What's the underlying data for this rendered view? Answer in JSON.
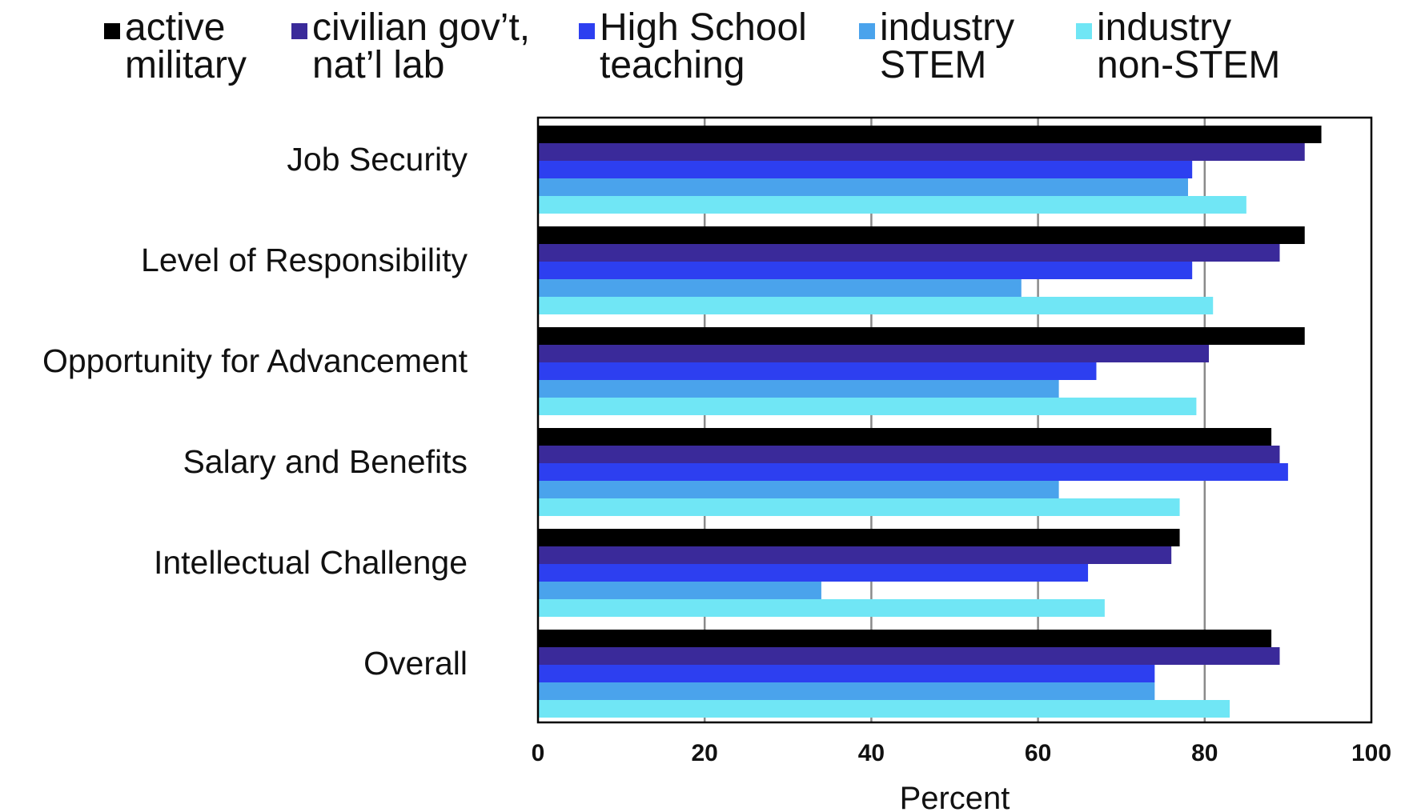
{
  "chart_data": {
    "type": "bar",
    "orientation": "horizontal",
    "categories": [
      "Job Security",
      "Level of Responsibility",
      "Opportunity for Advancement",
      "Salary and Benefits",
      "Intellectual Challenge",
      "Overall"
    ],
    "series": [
      {
        "name": "active military",
        "legend_lines": [
          "active",
          "military"
        ],
        "color": "#000000",
        "values": [
          94,
          92,
          92,
          88,
          77,
          88
        ]
      },
      {
        "name": "civilian gov’t, nat’l lab",
        "legend_lines": [
          "civilian gov’t,",
          "nat’l lab"
        ],
        "color": "#3a2a9a",
        "values": [
          92,
          89,
          80.5,
          89,
          76,
          89
        ]
      },
      {
        "name": "High School teaching",
        "legend_lines": [
          "High School",
          "teaching"
        ],
        "color": "#2d3ff0",
        "values": [
          78.5,
          78.5,
          67,
          90,
          66,
          74
        ]
      },
      {
        "name": "industry STEM",
        "legend_lines": [
          "industry",
          "STEM"
        ],
        "color": "#4aa3ec",
        "values": [
          78,
          58,
          62.5,
          62.5,
          34,
          74
        ]
      },
      {
        "name": "industry non-STEM",
        "legend_lines": [
          "industry",
          "non-STEM"
        ],
        "color": "#70e6f5",
        "values": [
          85,
          81,
          79,
          77,
          68,
          83
        ]
      }
    ],
    "xlabel": "Percent",
    "ylabel": "",
    "xlim": [
      0,
      100
    ],
    "xticks": [
      0,
      20,
      40,
      60,
      80,
      100
    ],
    "xtick_labels": [
      "0",
      "20",
      "40",
      "60",
      "80",
      "100"
    ],
    "grid": true,
    "legend_position": "top"
  }
}
